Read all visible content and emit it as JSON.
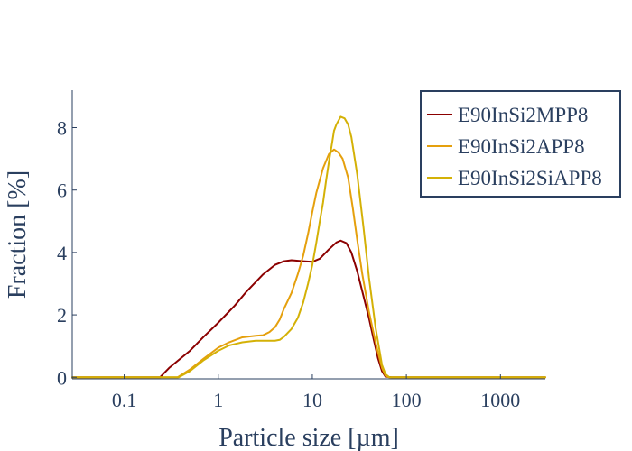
{
  "chart_data": {
    "type": "line",
    "xlabel": "Particle size [µm]",
    "ylabel": "Fraction [%]",
    "x_scale": "log",
    "xlim": [
      0.028,
      3000
    ],
    "ylim": [
      -0.05,
      9.2
    ],
    "x_ticks": [
      {
        "value": 0.1,
        "label": "0.1"
      },
      {
        "value": 1,
        "label": "1"
      },
      {
        "value": 10,
        "label": "10"
      },
      {
        "value": 100,
        "label": "100"
      },
      {
        "value": 1000,
        "label": "1000"
      }
    ],
    "y_ticks": [
      {
        "value": 0,
        "label": "0"
      },
      {
        "value": 2,
        "label": "2"
      },
      {
        "value": 4,
        "label": "4"
      },
      {
        "value": 6,
        "label": "6"
      },
      {
        "value": 8,
        "label": "8"
      }
    ],
    "grid": false,
    "legend_position": "top-right",
    "series": [
      {
        "name": "E90InSi2MPP8",
        "color": "#8b0000",
        "points": [
          [
            0.028,
            0
          ],
          [
            0.1,
            0
          ],
          [
            0.24,
            0
          ],
          [
            0.3,
            0.3
          ],
          [
            0.5,
            0.85
          ],
          [
            0.7,
            1.3
          ],
          [
            1.0,
            1.75
          ],
          [
            1.5,
            2.3
          ],
          [
            2.0,
            2.75
          ],
          [
            3.0,
            3.3
          ],
          [
            4.0,
            3.6
          ],
          [
            5.0,
            3.72
          ],
          [
            6.0,
            3.75
          ],
          [
            8.0,
            3.72
          ],
          [
            10.0,
            3.7
          ],
          [
            12.0,
            3.8
          ],
          [
            15.0,
            4.1
          ],
          [
            18.0,
            4.32
          ],
          [
            20.0,
            4.38
          ],
          [
            23.0,
            4.3
          ],
          [
            26.0,
            4.0
          ],
          [
            30.0,
            3.4
          ],
          [
            35.0,
            2.6
          ],
          [
            40.0,
            1.9
          ],
          [
            45.0,
            1.2
          ],
          [
            50.0,
            0.6
          ],
          [
            55.0,
            0.2
          ],
          [
            60.0,
            0.02
          ],
          [
            70.0,
            0
          ],
          [
            3000,
            0
          ]
        ]
      },
      {
        "name": "E90InSi2APP8",
        "color": "#e5a00d",
        "points": [
          [
            0.028,
            0
          ],
          [
            0.1,
            0
          ],
          [
            0.37,
            0
          ],
          [
            0.5,
            0.25
          ],
          [
            0.7,
            0.6
          ],
          [
            1.0,
            0.95
          ],
          [
            1.3,
            1.12
          ],
          [
            1.8,
            1.28
          ],
          [
            2.5,
            1.33
          ],
          [
            3.0,
            1.35
          ],
          [
            3.5,
            1.45
          ],
          [
            4.0,
            1.6
          ],
          [
            4.5,
            1.85
          ],
          [
            5.0,
            2.2
          ],
          [
            6.0,
            2.7
          ],
          [
            7.0,
            3.3
          ],
          [
            8.0,
            3.9
          ],
          [
            9.0,
            4.6
          ],
          [
            10.0,
            5.3
          ],
          [
            11.0,
            5.9
          ],
          [
            13.0,
            6.7
          ],
          [
            15.0,
            7.15
          ],
          [
            17.0,
            7.3
          ],
          [
            19.0,
            7.2
          ],
          [
            21.0,
            7.0
          ],
          [
            24.0,
            6.4
          ],
          [
            27.0,
            5.4
          ],
          [
            30.0,
            4.4
          ],
          [
            34.0,
            3.3
          ],
          [
            40.0,
            2.1
          ],
          [
            48.0,
            1.0
          ],
          [
            55.0,
            0.3
          ],
          [
            60.0,
            0.05
          ],
          [
            65.0,
            0
          ],
          [
            3000,
            0
          ]
        ]
      },
      {
        "name": "E90InSi2SiAPP8",
        "color": "#d4b106",
        "points": [
          [
            0.028,
            0
          ],
          [
            0.1,
            0
          ],
          [
            0.38,
            0
          ],
          [
            0.5,
            0.2
          ],
          [
            0.7,
            0.55
          ],
          [
            1.0,
            0.85
          ],
          [
            1.3,
            1.02
          ],
          [
            1.8,
            1.12
          ],
          [
            2.5,
            1.17
          ],
          [
            3.0,
            1.17
          ],
          [
            4.0,
            1.17
          ],
          [
            4.5,
            1.2
          ],
          [
            5.0,
            1.3
          ],
          [
            6.0,
            1.55
          ],
          [
            7.0,
            1.9
          ],
          [
            8.0,
            2.4
          ],
          [
            9.0,
            3.0
          ],
          [
            10.0,
            3.6
          ],
          [
            11.0,
            4.3
          ],
          [
            12.0,
            5.0
          ],
          [
            13.0,
            5.6
          ],
          [
            14.0,
            6.3
          ],
          [
            15.0,
            6.9
          ],
          [
            16.0,
            7.4
          ],
          [
            17.0,
            7.9
          ],
          [
            18.0,
            8.1
          ],
          [
            20.0,
            8.35
          ],
          [
            22.0,
            8.3
          ],
          [
            24.0,
            8.1
          ],
          [
            26.0,
            7.7
          ],
          [
            30.0,
            6.5
          ],
          [
            35.0,
            4.8
          ],
          [
            40.0,
            3.2
          ],
          [
            47.0,
            1.6
          ],
          [
            55.0,
            0.4
          ],
          [
            60.0,
            0.1
          ],
          [
            66.0,
            0
          ],
          [
            3000,
            0
          ]
        ]
      }
    ]
  }
}
